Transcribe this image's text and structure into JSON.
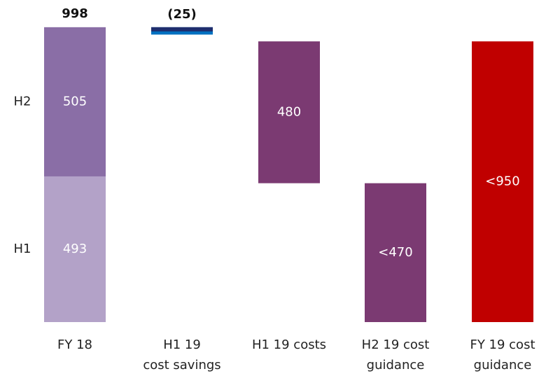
{
  "chart_data": {
    "type": "waterfall",
    "categories": [
      [
        "FY 18"
      ],
      [
        "H1 19",
        "cost savings"
      ],
      [
        "H1 19 costs"
      ],
      [
        "H2 19 cost",
        "guidance"
      ],
      [
        "FY 19 cost",
        "guidance"
      ]
    ],
    "ylim": [
      0,
      1000
    ],
    "stack": {
      "segments": [
        {
          "name": "H1",
          "value": 493,
          "color": "#b3a2c8"
        },
        {
          "name": "H2",
          "value": 505,
          "color": "#8a6ea6"
        }
      ],
      "total": 998
    },
    "steps": [
      {
        "value": -25,
        "value_label": "(25)",
        "mode": "delta",
        "color": "#0070c0",
        "edge_color": "#1f2e6e"
      },
      {
        "value": 480,
        "mode": "on_next",
        "color": "#7b3a72"
      },
      {
        "value": 470,
        "value_label": "<470",
        "mode": "from_zero",
        "color": "#7b3a72"
      },
      {
        "value": 950,
        "value_label": "<950",
        "mode": "from_zero",
        "color": "#c00000"
      }
    ]
  }
}
